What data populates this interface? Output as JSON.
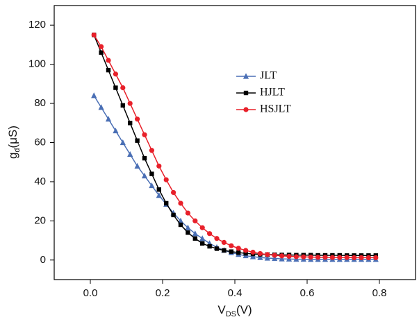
{
  "chart_data": {
    "type": "line",
    "y_label": {
      "base": "g",
      "sub": "d",
      "unit": "(μS)"
    },
    "x_label": {
      "base": "V",
      "sub": "DS",
      "unit": "(V)"
    },
    "x": [
      0.01,
      0.03,
      0.05,
      0.07,
      0.09,
      0.11,
      0.13,
      0.15,
      0.17,
      0.19,
      0.21,
      0.23,
      0.25,
      0.27,
      0.29,
      0.31,
      0.33,
      0.35,
      0.37,
      0.39,
      0.41,
      0.43,
      0.45,
      0.47,
      0.49,
      0.51,
      0.53,
      0.55,
      0.57,
      0.59,
      0.61,
      0.63,
      0.65,
      0.67,
      0.69,
      0.71,
      0.73,
      0.75,
      0.77,
      0.79
    ],
    "series": [
      {
        "name": "JLT",
        "color": "#4a6fb5",
        "marker": "triangle",
        "values": [
          84,
          78,
          72,
          66,
          60,
          54,
          48,
          43,
          38,
          33,
          28.5,
          24,
          20,
          16.5,
          13.5,
          11,
          8.5,
          6.5,
          5,
          3.8,
          2.9,
          2.2,
          1.7,
          1.3,
          1.0,
          0.8,
          0.6,
          0.5,
          0.4,
          0.4,
          0.3,
          0.3,
          0.3,
          0.3,
          0.3,
          0.3,
          0.3,
          0.3,
          0.3,
          0.3
        ]
      },
      {
        "name": "HJLT",
        "color": "#000000",
        "marker": "square",
        "values": [
          115,
          106,
          97,
          88,
          79,
          70,
          61,
          52,
          44,
          36,
          29,
          23,
          18,
          14,
          11,
          8.5,
          7,
          5.8,
          4.9,
          4.3,
          3.8,
          3.4,
          3.1,
          2.9,
          2.8,
          2.7,
          2.6,
          2.6,
          2.5,
          2.5,
          2.5,
          2.4,
          2.4,
          2.4,
          2.4,
          2.3,
          2.3,
          2.3,
          2.3,
          2.3
        ]
      },
      {
        "name": "HSJLT",
        "color": "#e8202a",
        "marker": "circle",
        "values": [
          115,
          109,
          102,
          95,
          88,
          80,
          72,
          64,
          56,
          48,
          41,
          34.5,
          29,
          24,
          20,
          16.5,
          13.5,
          11,
          9,
          7.3,
          6,
          4.9,
          4,
          3.3,
          2.8,
          2.4,
          2.1,
          1.9,
          1.7,
          1.6,
          1.5,
          1.4,
          1.4,
          1.3,
          1.3,
          1.3,
          1.2,
          1.2,
          1.2,
          1.2
        ]
      }
    ],
    "xlim": [
      -0.1,
      0.9
    ],
    "ylim": [
      -10,
      130
    ],
    "xticks": [
      {
        "value": 0,
        "label": "0.0"
      },
      0.2,
      0.4,
      0.6,
      0.8
    ],
    "yticks": [
      0,
      20,
      40,
      60,
      80,
      100,
      120
    ],
    "grid": false,
    "legend": "top"
  }
}
